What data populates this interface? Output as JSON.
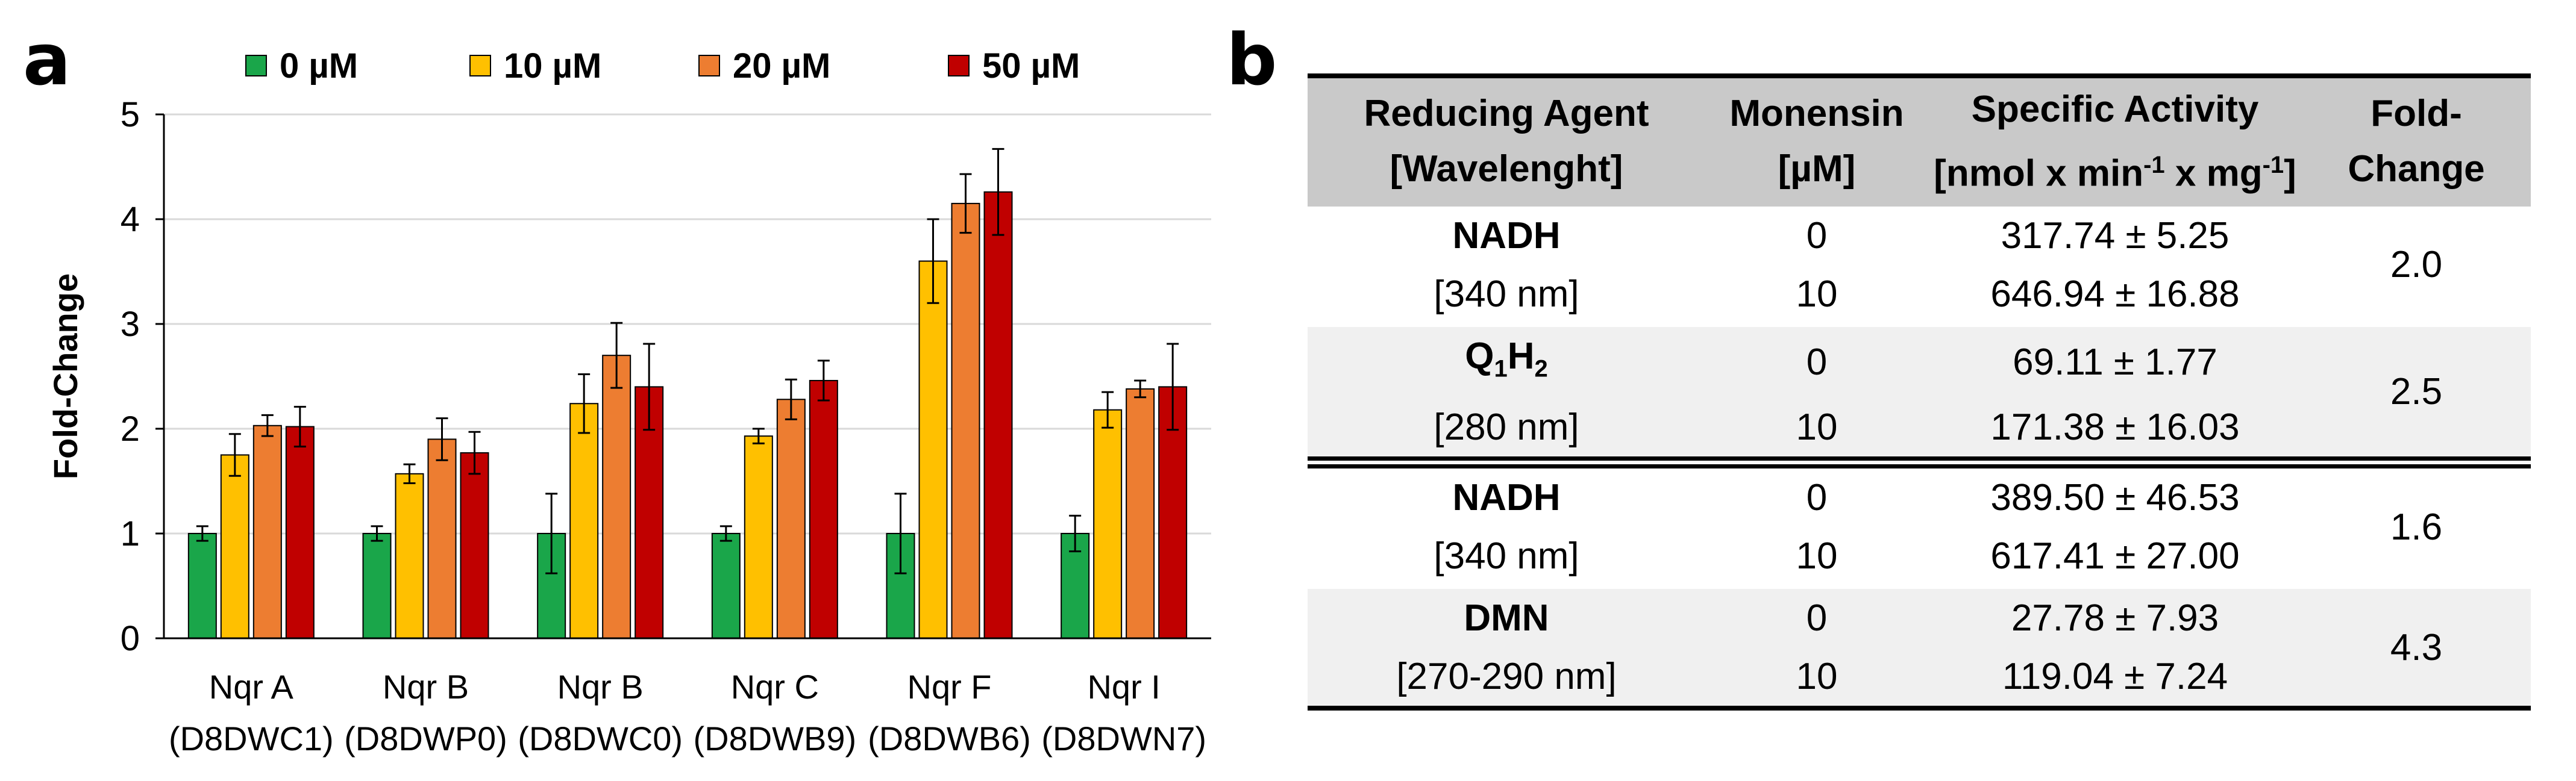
{
  "panels": {
    "a": "a",
    "b": "b"
  },
  "chart_data": {
    "type": "bar",
    "ylabel": "Fold-Change",
    "ylim": [
      0,
      5
    ],
    "yticks": [
      0,
      1,
      2,
      3,
      4,
      5
    ],
    "grid": true,
    "legend_position": "top",
    "categories": [
      [
        "Nqr A",
        "(D8DWC1)"
      ],
      [
        "Nqr B",
        "(D8DWP0)"
      ],
      [
        "Nqr B",
        "(D8DWC0)"
      ],
      [
        "Nqr C",
        "(D8DWB9)"
      ],
      [
        "Nqr F",
        "(D8DWB6)"
      ],
      [
        "Nqr I",
        "(D8DWN7)"
      ]
    ],
    "series": [
      {
        "name": "0 µM",
        "color": "#1aa64a",
        "values": [
          1.0,
          1.0,
          1.0,
          1.0,
          1.0,
          1.0
        ],
        "errors": [
          0.07,
          0.07,
          0.38,
          0.07,
          0.38,
          0.17
        ]
      },
      {
        "name": "10 µM",
        "color": "#ffc000",
        "values": [
          1.75,
          1.57,
          2.24,
          1.93,
          3.6,
          2.18
        ],
        "errors": [
          0.2,
          0.09,
          0.28,
          0.07,
          0.4,
          0.17
        ]
      },
      {
        "name": "20 µM",
        "color": "#ed7d31",
        "values": [
          2.03,
          1.9,
          2.7,
          2.28,
          4.15,
          2.38
        ],
        "errors": [
          0.1,
          0.2,
          0.31,
          0.19,
          0.28,
          0.08
        ]
      },
      {
        "name": "50 µM",
        "color": "#c00000",
        "values": [
          2.02,
          1.77,
          2.4,
          2.46,
          4.26,
          2.4
        ],
        "errors": [
          0.19,
          0.2,
          0.41,
          0.19,
          0.41,
          0.41
        ]
      }
    ]
  },
  "table": {
    "headers": [
      [
        "Reducing Agent",
        "[Wavelenght]"
      ],
      [
        "Monensin",
        "[µM]"
      ],
      [
        "Specific Activity",
        "[nmol x min",
        "-1",
        " x mg",
        "-1",
        "]"
      ],
      [
        "Fold-",
        "Change"
      ]
    ],
    "groups": [
      {
        "agent": "NADH",
        "wavelength": "[340 nm]",
        "monensin": [
          "0",
          "10"
        ],
        "activity": [
          "317.74 ± 5.25",
          "646.94 ± 16.88"
        ],
        "fold": "2.0"
      },
      {
        "agent_parts": [
          "Q",
          "1",
          "H",
          "2"
        ],
        "wavelength": "[280 nm]",
        "monensin": [
          "0",
          "10"
        ],
        "activity": [
          "69.11 ± 1.77",
          "171.38 ± 16.03"
        ],
        "fold": "2.5"
      },
      {
        "agent": "NADH",
        "wavelength": "[340 nm]",
        "monensin": [
          "0",
          "10"
        ],
        "activity": [
          "389.50 ± 46.53",
          "617.41 ± 27.00"
        ],
        "fold": "1.6"
      },
      {
        "agent": "DMN",
        "wavelength": "[270-290 nm]",
        "monensin": [
          "0",
          "10"
        ],
        "activity": [
          "27.78 ± 7.93",
          "119.04 ± 7.24"
        ],
        "fold": "4.3"
      }
    ]
  }
}
